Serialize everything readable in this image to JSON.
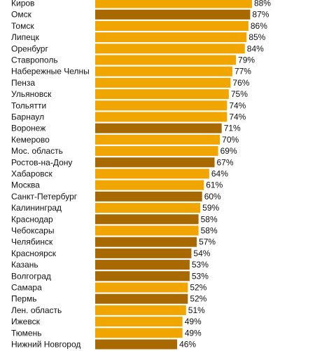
{
  "colors": {
    "light": "#F0A500",
    "dark": "#A86A00",
    "text": "#111111"
  },
  "chart_data": {
    "type": "bar",
    "orientation": "horizontal",
    "title": "",
    "xlabel": "",
    "ylabel": "",
    "xlim": [
      0,
      100
    ],
    "grid": false,
    "legend": "none",
    "value_suffix": "%",
    "categories": [
      "Киров",
      "Омск",
      "Томск",
      "Липецк",
      "Оренбург",
      "Ставрополь",
      "Набережные Челны",
      "Пенза",
      "Ульяновск",
      "Тольятти",
      "Барнаул",
      "Воронеж",
      "Кемерово",
      "Мос. область",
      "Ростов-на-Дону",
      "Хабаровск",
      "Москва",
      "Санкт-Петербург",
      "Калининград",
      "Краснодар",
      "Чебоксары",
      "Челябинск",
      "Красноярск",
      "Казань",
      "Волгоград",
      "Самара",
      "Пермь",
      "Лен. область",
      "Ижевск",
      "Тюмень",
      "Нижний Новгород"
    ],
    "values": [
      88,
      87,
      86,
      85,
      84,
      79,
      77,
      76,
      75,
      74,
      74,
      71,
      70,
      69,
      67,
      64,
      61,
      60,
      59,
      58,
      58,
      57,
      54,
      53,
      53,
      52,
      52,
      51,
      49,
      49,
      46
    ],
    "value_labels": [
      "88%",
      "87%",
      "86%",
      "85%",
      "84%",
      "79%",
      "77%",
      "76%",
      "75%",
      "74%",
      "74%",
      "71%",
      "70%",
      "69%",
      "67%",
      "64%",
      "61%",
      "60%",
      "59%",
      "58%",
      "58%",
      "57%",
      "54%",
      "53%",
      "53%",
      "52%",
      "52%",
      "51%",
      "49%",
      "49%",
      "46%"
    ],
    "bar_colors": [
      "light",
      "dark",
      "light",
      "light",
      "light",
      "light",
      "light",
      "light",
      "light",
      "light",
      "light",
      "dark",
      "light",
      "light",
      "dark",
      "light",
      "light",
      "dark",
      "light",
      "dark",
      "light",
      "dark",
      "dark",
      "dark",
      "dark",
      "light",
      "dark",
      "light",
      "light",
      "light",
      "dark"
    ]
  }
}
